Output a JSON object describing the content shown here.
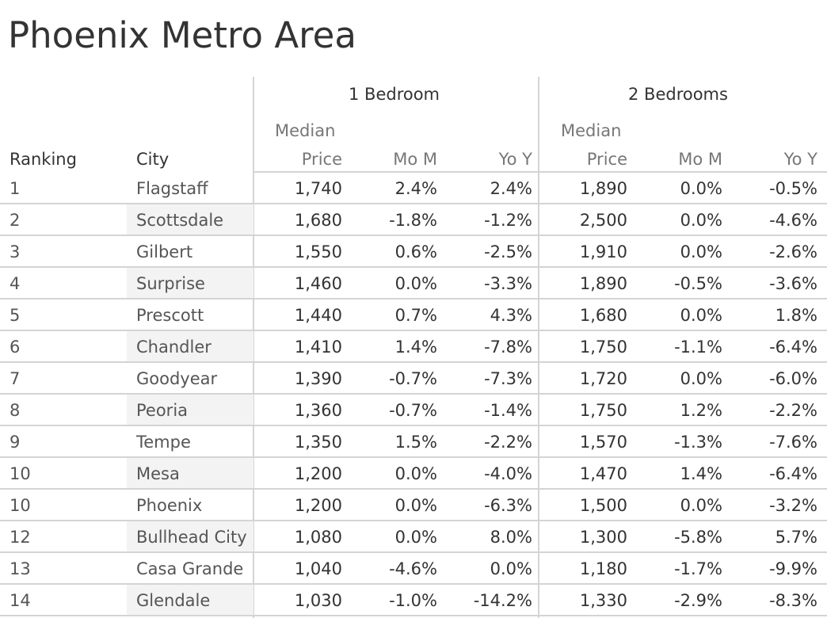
{
  "title": "Phoenix Metro Area",
  "headers": {
    "ranking": "Ranking",
    "city": "City",
    "group1": "1 Bedroom",
    "group2": "2 Bedrooms",
    "median_line1": "Median",
    "median_line2": "Price",
    "mom": "Mo M",
    "yoy": "Yo Y"
  },
  "chart_data": {
    "type": "table",
    "title": "Phoenix Metro Area",
    "column_groups": [
      "1 Bedroom",
      "2 Bedrooms"
    ],
    "columns": [
      "Ranking",
      "City",
      "Median Price",
      "Mo M",
      "Yo Y",
      "Median Price",
      "Mo M",
      "Yo Y"
    ],
    "rows": [
      [
        "1",
        "Flagstaff",
        "1,740",
        "2.4%",
        "2.4%",
        "1,890",
        "0.0%",
        "-0.5%"
      ],
      [
        "2",
        "Scottsdale",
        "1,680",
        "-1.8%",
        "-1.2%",
        "2,500",
        "0.0%",
        "-4.6%"
      ],
      [
        "3",
        "Gilbert",
        "1,550",
        "0.6%",
        "-2.5%",
        "1,910",
        "0.0%",
        "-2.6%"
      ],
      [
        "4",
        "Surprise",
        "1,460",
        "0.0%",
        "-3.3%",
        "1,890",
        "-0.5%",
        "-3.6%"
      ],
      [
        "5",
        "Prescott",
        "1,440",
        "0.7%",
        "4.3%",
        "1,680",
        "0.0%",
        "1.8%"
      ],
      [
        "6",
        "Chandler",
        "1,410",
        "1.4%",
        "-7.8%",
        "1,750",
        "-1.1%",
        "-6.4%"
      ],
      [
        "7",
        "Goodyear",
        "1,390",
        "-0.7%",
        "-7.3%",
        "1,720",
        "0.0%",
        "-6.0%"
      ],
      [
        "8",
        "Peoria",
        "1,360",
        "-0.7%",
        "-1.4%",
        "1,750",
        "1.2%",
        "-2.2%"
      ],
      [
        "9",
        "Tempe",
        "1,350",
        "1.5%",
        "-2.2%",
        "1,570",
        "-1.3%",
        "-7.6%"
      ],
      [
        "10",
        "Mesa",
        "1,200",
        "0.0%",
        "-4.0%",
        "1,470",
        "1.4%",
        "-6.4%"
      ],
      [
        "10",
        "Phoenix",
        "1,200",
        "0.0%",
        "-6.3%",
        "1,500",
        "0.0%",
        "-3.2%"
      ],
      [
        "12",
        "Bullhead City",
        "1,080",
        "0.0%",
        "8.0%",
        "1,300",
        "-5.8%",
        "5.7%"
      ],
      [
        "13",
        "Casa Grande",
        "1,040",
        "-4.6%",
        "0.0%",
        "1,180",
        "-1.7%",
        "-9.9%"
      ],
      [
        "14",
        "Glendale",
        "1,030",
        "-1.0%",
        "-14.2%",
        "1,330",
        "-2.9%",
        "-8.3%"
      ]
    ]
  }
}
